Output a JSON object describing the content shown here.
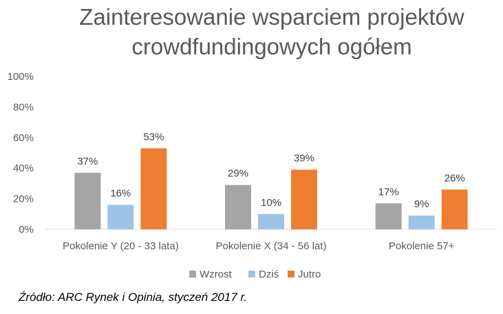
{
  "chart_data": {
    "type": "bar",
    "title": [
      "Zainteresowanie wsparciem projektów",
      "crowdfundingowych ogółem"
    ],
    "categories": [
      "Pokolenie Y (20 - 33 lata)",
      "Pokolenie X (34 - 56 lat)",
      "Pokolenie 57+"
    ],
    "series": [
      {
        "name": "Wzrost",
        "color": "#a5a5a5",
        "values": [
          37,
          29,
          17
        ]
      },
      {
        "name": "Dziś",
        "color": "#9dc3e6",
        "values": [
          16,
          10,
          9
        ]
      },
      {
        "name": "Jutro",
        "color": "#ed7d31",
        "values": [
          53,
          39,
          26
        ]
      }
    ],
    "ylim": [
      0,
      100
    ],
    "yticks": [
      0,
      20,
      40,
      60,
      80,
      100
    ],
    "ytick_labels": [
      "0%",
      "20%",
      "40%",
      "60%",
      "80%",
      "100%"
    ],
    "value_suffix": "%",
    "grid": false,
    "legend_position": "bottom"
  },
  "source": "Źródło: ARC Rynek i Opinia, styczeń 2017 r."
}
